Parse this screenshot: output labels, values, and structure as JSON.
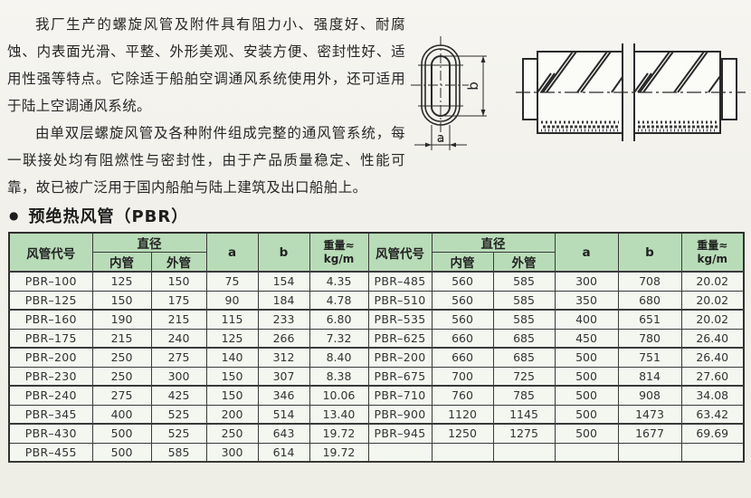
{
  "page": {
    "background": "#f1f0ea",
    "intro_paragraphs": [
      "我厂生产的螺旋风管及附件具有阻力小、强度好、耐腐蚀、内表面光滑、平整、外形美观、安装方便、密封性好、适用性强等特点。它除适于船舶空调通风系统使用外，还可适用于陆上空调通风系统。",
      "由单双层螺旋风管及各种附件组成完整的通风管系统，每一联接处均有阻燃性与密封性，由于产品质量稳定、性能可靠，故已被广泛用于国内船舶与陆上建筑及出口船舶上。"
    ]
  },
  "diagrams": {
    "oval_section": {
      "dim_width_label": "a",
      "dim_height_label": "b"
    },
    "spiral_duct": {}
  },
  "section": {
    "bullet": "●",
    "title": "预绝热风管（PBR）"
  },
  "table": {
    "header_bg": "#b9dcb8",
    "header": {
      "code": "风管代号",
      "diameter": "直径",
      "inner": "内管",
      "outer": "外管",
      "a": "a",
      "b": "b",
      "weight_line1": "重量≈",
      "weight_line2": "kg/m"
    },
    "column_keys": [
      "code",
      "inner",
      "outer",
      "a",
      "b",
      "weight"
    ],
    "rows": [
      {
        "left": {
          "code": "PBR–100",
          "inner": "125",
          "outer": "150",
          "a": "75",
          "b": "154",
          "weight": "4.35"
        },
        "right": {
          "code": "PBR–485",
          "inner": "560",
          "outer": "585",
          "a": "300",
          "b": "708",
          "weight": "20.02"
        }
      },
      {
        "left": {
          "code": "PBR–125",
          "inner": "150",
          "outer": "175",
          "a": "90",
          "b": "184",
          "weight": "4.78"
        },
        "right": {
          "code": "PBR–510",
          "inner": "560",
          "outer": "585",
          "a": "350",
          "b": "680",
          "weight": "20.02"
        }
      },
      {
        "left": {
          "code": "PBR–160",
          "inner": "190",
          "outer": "215",
          "a": "115",
          "b": "233",
          "weight": "6.80"
        },
        "right": {
          "code": "PBR–535",
          "inner": "560",
          "outer": "585",
          "a": "400",
          "b": "651",
          "weight": "20.02"
        }
      },
      {
        "left": {
          "code": "PBR–175",
          "inner": "215",
          "outer": "240",
          "a": "125",
          "b": "266",
          "weight": "7.32"
        },
        "right": {
          "code": "PBR–625",
          "inner": "660",
          "outer": "685",
          "a": "450",
          "b": "780",
          "weight": "26.40"
        }
      },
      {
        "left": {
          "code": "PBR–200",
          "inner": "250",
          "outer": "275",
          "a": "140",
          "b": "312",
          "weight": "8.40"
        },
        "right": {
          "code": "PBR–200",
          "inner": "660",
          "outer": "685",
          "a": "500",
          "b": "751",
          "weight": "26.40"
        }
      },
      {
        "left": {
          "code": "PBR–230",
          "inner": "250",
          "outer": "300",
          "a": "150",
          "b": "307",
          "weight": "8.38"
        },
        "right": {
          "code": "PBR–675",
          "inner": "700",
          "outer": "725",
          "a": "500",
          "b": "814",
          "weight": "27.60"
        }
      },
      {
        "left": {
          "code": "PBR–240",
          "inner": "275",
          "outer": "425",
          "a": "150",
          "b": "346",
          "weight": "10.06"
        },
        "right": {
          "code": "PBR–710",
          "inner": "760",
          "outer": "785",
          "a": "500",
          "b": "908",
          "weight": "34.08"
        }
      },
      {
        "left": {
          "code": "PBR–345",
          "inner": "400",
          "outer": "525",
          "a": "200",
          "b": "514",
          "weight": "13.40"
        },
        "right": {
          "code": "PBR–900",
          "inner": "1120",
          "outer": "1145",
          "a": "500",
          "b": "1473",
          "weight": "63.42"
        }
      },
      {
        "left": {
          "code": "PBR–430",
          "inner": "500",
          "outer": "525",
          "a": "250",
          "b": "643",
          "weight": "19.72"
        },
        "right": {
          "code": "PBR–945",
          "inner": "1250",
          "outer": "1275",
          "a": "500",
          "b": "1677",
          "weight": "69.69"
        }
      },
      {
        "left": {
          "code": "PBR–455",
          "inner": "500",
          "outer": "585",
          "a": "300",
          "b": "614",
          "weight": "19.72"
        },
        "right": null
      }
    ]
  }
}
